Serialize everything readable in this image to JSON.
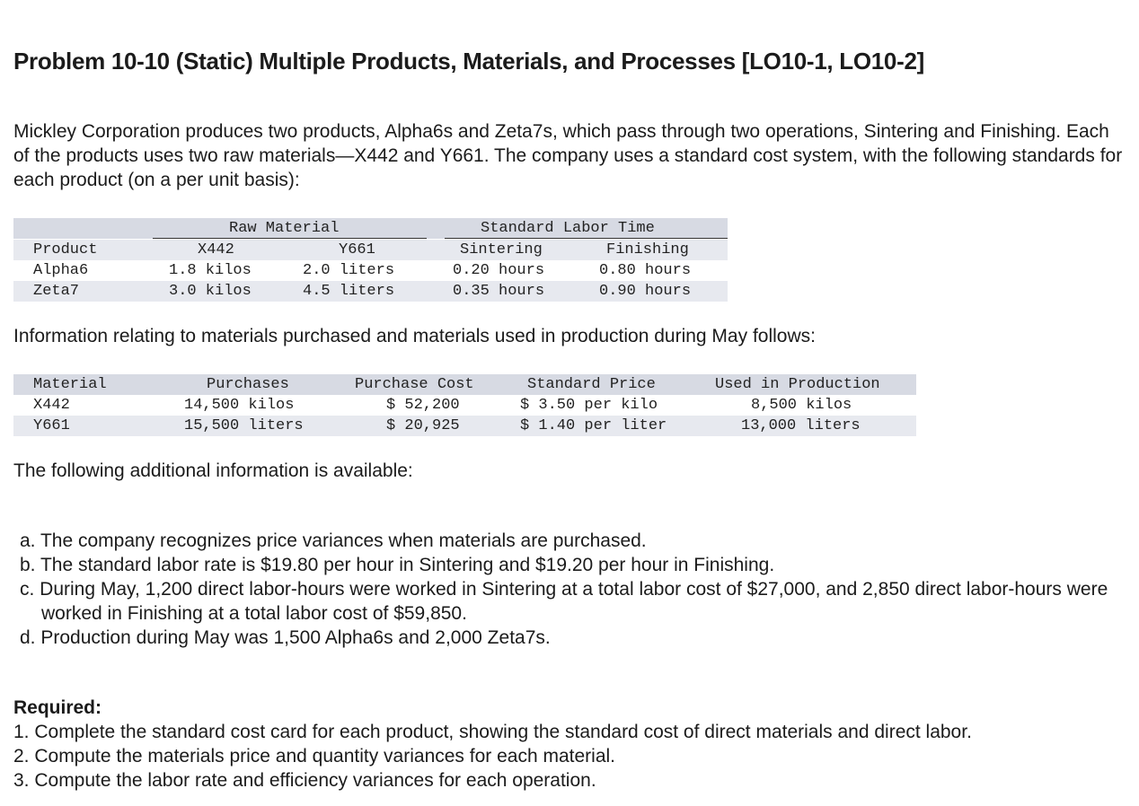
{
  "title": "Problem 10-10 (Static) Multiple Products, Materials, and Processes [LO10-1, LO10-2]",
  "intro": "Mickley Corporation produces two products, Alpha6s and Zeta7s, which pass through two operations, Sintering and Finishing. Each of the products uses two raw materials—X442 and Y661. The company uses a standard cost system, with the following standards for each product (on a per unit basis):",
  "standards_table": {
    "group_raw_material": "Raw Material",
    "group_labor_time": "Standard Labor Time",
    "headers": [
      "Product",
      "X442",
      "Y661",
      "Sintering",
      "Finishing"
    ],
    "rows": [
      [
        "Alpha6",
        "1.8 kilos",
        "2.0 liters",
        "0.20 hours",
        "0.80 hours"
      ],
      [
        "Zeta7",
        "3.0 kilos",
        "4.5 liters",
        "0.35 hours",
        "0.90 hours"
      ]
    ]
  },
  "info_text": "Information relating to materials purchased and materials used in production during May follows:",
  "materials_table": {
    "headers": [
      "Material",
      "Purchases",
      "Purchase Cost",
      "Standard Price",
      "Used in Production"
    ],
    "rows": [
      [
        "X442",
        "14,500 kilos",
        "$ 52,200",
        "$ 3.50 per kilo",
        "8,500 kilos"
      ],
      [
        "Y661",
        "15,500 liters",
        "$ 20,925",
        "$ 1.40 per liter",
        "13,000 liters"
      ]
    ]
  },
  "additional_text": "The following additional information is available:",
  "additional_items": [
    "a. The company recognizes price variances when materials are purchased.",
    "b. The standard labor rate is $19.80 per hour in Sintering and $19.20 per hour in Finishing.",
    "c. During May, 1,200 direct labor-hours were worked in Sintering at a total labor cost of $27,000, and 2,850 direct labor-hours were worked in Finishing at a total labor cost of $59,850.",
    "d. Production during May was 1,500 Alpha6s and 2,000 Zeta7s."
  ],
  "required_title": "Required:",
  "required_items": [
    "1. Complete the standard cost card for each product, showing the standard cost of direct materials and direct labor.",
    "2. Compute the materials price and quantity variances for each material.",
    "3. Compute the labor rate and efficiency variances for each operation."
  ]
}
